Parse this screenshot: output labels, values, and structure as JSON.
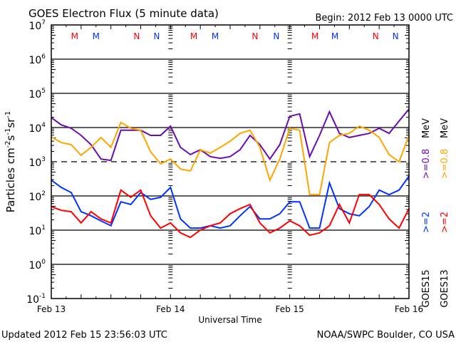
{
  "chart_data": {
    "type": "line",
    "title": "GOES Electron Flux (5 minute data)",
    "begin": "Begin: 2012 Feb 13 0000 UTC",
    "xlabel": "Universal Time",
    "ylabel": "Particles cm",
    "ylabel_parts": [
      "Particles cm",
      "-2",
      "s",
      "-1",
      "sr",
      "-1"
    ],
    "x_unit": "hours since 2012 Feb 13 00:00 UTC",
    "xlim": [
      0,
      72
    ],
    "x_ticks": [
      {
        "value": 0,
        "label": "Feb 13"
      },
      {
        "value": 24,
        "label": "Feb 14"
      },
      {
        "value": 48,
        "label": "Feb 15"
      },
      {
        "value": 72,
        "label": "Feb 16"
      }
    ],
    "y_scale": "log",
    "ylim_log10": [
      -1,
      7
    ],
    "y_ticks": [
      {
        "exp": "7"
      },
      {
        "exp": "6"
      },
      {
        "exp": "5"
      },
      {
        "exp": "4"
      },
      {
        "exp": "3"
      },
      {
        "exp": "2"
      },
      {
        "exp": "1"
      },
      {
        "exp": "0"
      },
      {
        "exp": "-1"
      }
    ],
    "threshold_dashed_log10": 3,
    "x_step_hours": 2,
    "series_values_are": "log10 flux",
    "series": [
      {
        "name": "GOES15 >=0.8 MeV",
        "color": "#6a0dad",
        "values": [
          4.29,
          4.08,
          3.98,
          3.77,
          3.5,
          3.08,
          3.04,
          3.92,
          3.92,
          3.92,
          3.77,
          3.77,
          4.04,
          3.42,
          3.21,
          3.35,
          3.15,
          3.1,
          3.15,
          3.35,
          3.77,
          3.5,
          3.08,
          3.5,
          4.33,
          4.4,
          3.15,
          3.77,
          4.46,
          3.83,
          3.71,
          3.77,
          3.83,
          3.98,
          3.83,
          4.19,
          4.54
        ]
      },
      {
        "name": "GOES13 >=0.8 MeV",
        "color": "#ffa500",
        "values": [
          3.73,
          3.56,
          3.5,
          3.19,
          3.42,
          3.71,
          3.42,
          4.15,
          3.98,
          3.92,
          3.29,
          2.94,
          3.08,
          2.79,
          2.73,
          3.35,
          3.25,
          3.42,
          3.6,
          3.83,
          3.92,
          3.42,
          2.46,
          3.08,
          3.98,
          3.92,
          2.04,
          2.04,
          3.56,
          3.77,
          3.83,
          4.04,
          3.92,
          3.71,
          3.21,
          3.0,
          3.77
        ]
      },
      {
        "name": "GOES15 >=2 MeV",
        "color": "#0033ff",
        "values": [
          2.46,
          2.25,
          2.1,
          1.54,
          1.42,
          1.27,
          1.13,
          1.83,
          1.75,
          2.1,
          1.9,
          1.96,
          2.25,
          1.33,
          1.06,
          1.06,
          1.13,
          1.06,
          1.13,
          1.42,
          1.69,
          1.33,
          1.33,
          1.48,
          1.83,
          1.83,
          1.06,
          1.06,
          2.38,
          1.63,
          1.48,
          1.42,
          1.69,
          2.17,
          2.04,
          2.17,
          2.58
        ]
      },
      {
        "name": "GOES13 >=2 MeV",
        "color": "#ff0000",
        "values": [
          1.69,
          1.58,
          1.54,
          1.21,
          1.54,
          1.33,
          1.21,
          2.17,
          1.96,
          2.17,
          1.42,
          1.06,
          1.21,
          0.92,
          0.79,
          1.0,
          1.13,
          1.21,
          1.48,
          1.63,
          1.75,
          1.21,
          0.92,
          1.06,
          1.27,
          1.13,
          0.85,
          0.92,
          1.13,
          1.75,
          1.21,
          2.04,
          2.04,
          1.75,
          1.33,
          1.06,
          1.63
        ]
      }
    ],
    "legend": {
      "placement": "right",
      "columns": [
        {
          "satellite": "GOES15",
          "high": ">=0.8",
          "low": ">=2",
          "high_color": "#6a0dad",
          "low_color": "#0033ff",
          "unit": "MeV"
        },
        {
          "satellite": "GOES13",
          "high": ">=0.8",
          "low": ">=2",
          "high_color": "#ffa500",
          "low_color": "#ff0000",
          "unit": "MeV"
        }
      ]
    },
    "local_time_markers": [
      {
        "hour": 4.7,
        "label": "M",
        "color": "#ff0000"
      },
      {
        "hour": 9.0,
        "label": "M",
        "color": "#0033ff"
      },
      {
        "hour": 17.2,
        "label": "N",
        "color": "#ff0000"
      },
      {
        "hour": 21.2,
        "label": "N",
        "color": "#0033ff"
      },
      {
        "hour": 28.7,
        "label": "M",
        "color": "#ff0000"
      },
      {
        "hour": 33.0,
        "label": "M",
        "color": "#0033ff"
      },
      {
        "hour": 41.0,
        "label": "N",
        "color": "#ff0000"
      },
      {
        "hour": 45.3,
        "label": "N",
        "color": "#0033ff"
      },
      {
        "hour": 53.1,
        "label": "M",
        "color": "#ff0000"
      },
      {
        "hour": 57.1,
        "label": "M",
        "color": "#0033ff"
      },
      {
        "hour": 65.3,
        "label": "N",
        "color": "#ff0000"
      },
      {
        "hour": 69.3,
        "label": "N",
        "color": "#0033ff"
      }
    ]
  },
  "footer": {
    "updated": "Updated 2012 Feb 15 23:56:03 UTC",
    "credit": "NOAA/SWPC Boulder, CO USA"
  }
}
